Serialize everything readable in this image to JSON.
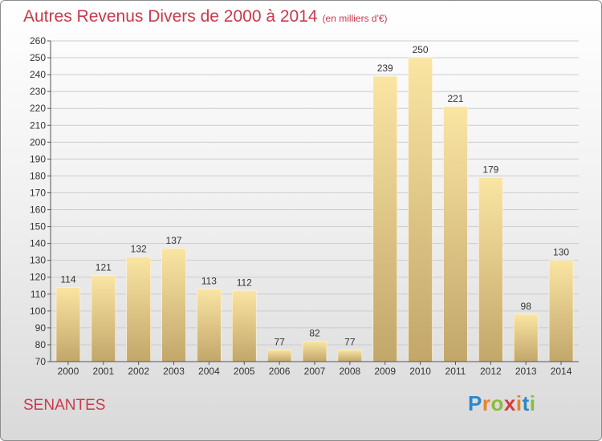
{
  "header": {
    "title": "Autres Revenus Divers de 2000 à 2014",
    "unit": "(en milliers d'€)"
  },
  "footer": {
    "commune": "SENANTES",
    "logo": {
      "letters": [
        "P",
        "r",
        "o",
        "x",
        "i",
        "t",
        "i"
      ],
      "colors": [
        "#2e87c8",
        "#e8832a",
        "#8dbb3a",
        "#d63a3a",
        "#e8832a",
        "#2e87c8",
        "#8dbb3a"
      ]
    }
  },
  "colors": {
    "title": "#c9384d",
    "bar_light": "#fae5a3",
    "bar_dark": "#c2a66a",
    "grid": "#cccccc",
    "axis": "#555555"
  },
  "chart_data": {
    "type": "bar",
    "categories": [
      "2000",
      "2001",
      "2002",
      "2003",
      "2004",
      "2005",
      "2006",
      "2007",
      "2008",
      "2009",
      "2010",
      "2011",
      "2012",
      "2013",
      "2014"
    ],
    "values": [
      114,
      121,
      132,
      137,
      113,
      112,
      77,
      82,
      77,
      239,
      250,
      221,
      179,
      98,
      130
    ],
    "data_labels": [
      "114",
      "121",
      "132",
      "137",
      "113",
      "112",
      "77",
      "82",
      "77",
      "239",
      "250",
      "221",
      "179",
      "98",
      "130"
    ],
    "title": "Autres Revenus Divers de 2000 à 2014",
    "subtitle": "(en milliers d'€)",
    "xlabel": "",
    "ylabel": "",
    "ylim": [
      70,
      260
    ],
    "yticks": [
      "70",
      "80",
      "90",
      "100",
      "110",
      "120",
      "130",
      "140",
      "150",
      "160",
      "170",
      "180",
      "190",
      "200",
      "210",
      "220",
      "230",
      "240",
      "250",
      "260"
    ],
    "grid": true,
    "legend": "none"
  }
}
